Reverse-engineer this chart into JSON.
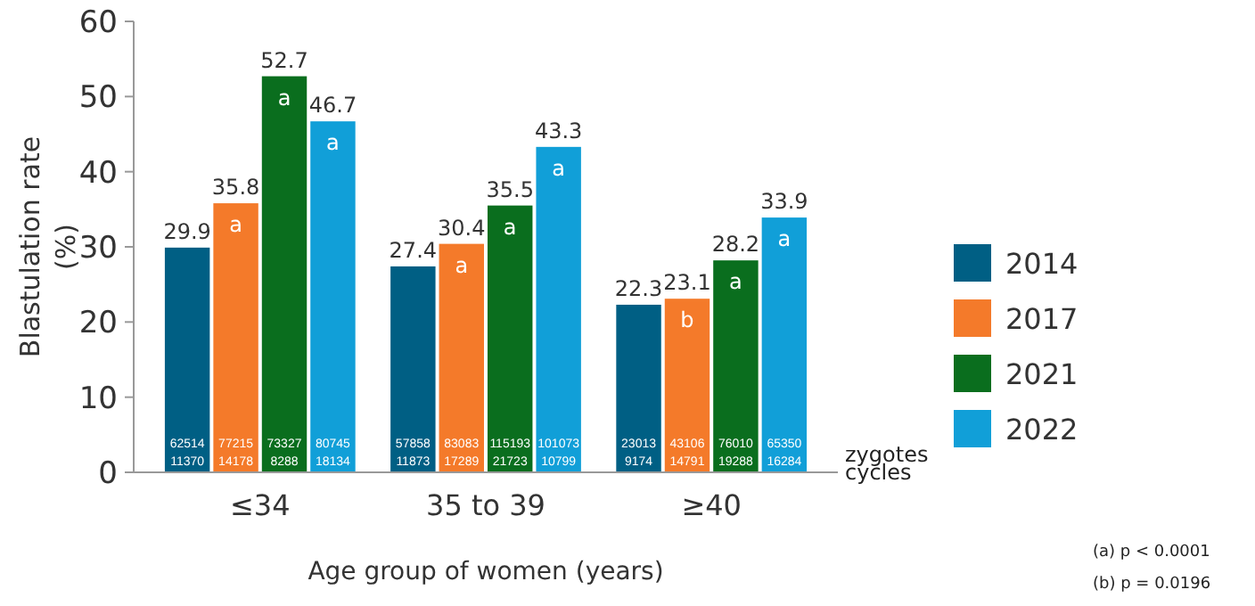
{
  "chart_data": {
    "type": "bar",
    "categories": [
      "≤34",
      "35 to 39",
      "≥40"
    ],
    "series": [
      {
        "name": "2014",
        "color": "#005f84",
        "values": [
          29.9,
          27.4,
          22.3
        ]
      },
      {
        "name": "2017",
        "color": "#f47a2a",
        "values": [
          35.8,
          30.4,
          23.1
        ]
      },
      {
        "name": "2021",
        "color": "#0a6e1e",
        "values": [
          52.7,
          35.5,
          28.2
        ]
      },
      {
        "name": "2022",
        "color": "#119fd8",
        "values": [
          46.7,
          43.3,
          33.9
        ]
      }
    ],
    "data_labels": true,
    "ylim": [
      0,
      60
    ],
    "yticks": [
      0,
      10,
      20,
      30,
      40,
      50,
      60
    ],
    "grid": false,
    "legend": "right",
    "xlabel": "Age group of women (years)",
    "ylabel": "Blastulation rate\n(%)",
    "annotations": [
      "a",
      "a",
      "b",
      "a",
      "a",
      "a",
      "a",
      "a",
      "a",
      "62514",
      "11370",
      "57858",
      "11873",
      "23013",
      "9174",
      "77215",
      "14178",
      "83083",
      "17289",
      "43106",
      "14791",
      "73327",
      "8288",
      "115193",
      "21723",
      "76010",
      "19288",
      "80745",
      "18134",
      "101073",
      "10799",
      "65350",
      "16284",
      "zygotes",
      "cycles",
      "(a) p < 0.0001",
      "(b) p = 0.0196"
    ]
  }
}
